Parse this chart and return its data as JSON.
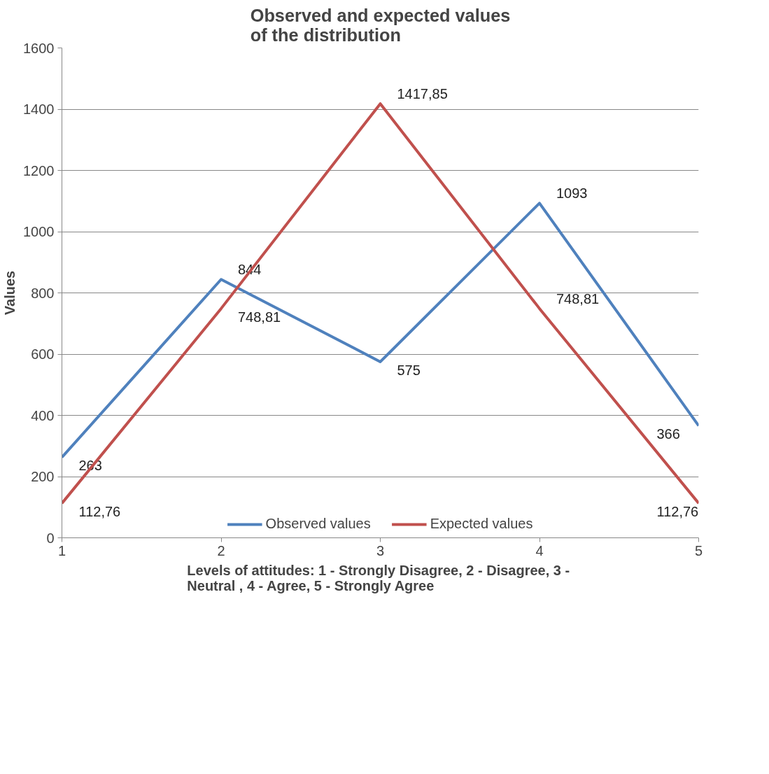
{
  "chart_data": {
    "type": "line",
    "title": "Observed and expected values of the distribution",
    "xlabel": "Levels of attitudes: 1 - Strongly Disagree, 2  - Disagree, 3 - Neutral , 4 - Agree, 5 - Strongly Agree",
    "ylabel": "Values",
    "x": [
      1,
      2,
      3,
      4,
      5
    ],
    "series": [
      {
        "name": "Observed values",
        "color": "#4f81bd",
        "values": [
          263,
          844,
          575,
          1093,
          366
        ],
        "value_labels": [
          "263",
          "844",
          "575",
          "1093",
          "366"
        ]
      },
      {
        "name": "Expected values",
        "color": "#c0504d",
        "values": [
          112.76,
          748.81,
          1417.85,
          748.81,
          112.76
        ],
        "value_labels": [
          "112,76",
          "748,81",
          "1417,85",
          "748,81",
          "112,76"
        ]
      }
    ],
    "xlim": [
      1,
      5
    ],
    "xticks": [
      1,
      2,
      3,
      4,
      5
    ],
    "ylim": [
      0,
      1600
    ],
    "yticks": [
      0,
      200,
      400,
      600,
      800,
      1000,
      1200,
      1400,
      1600
    ],
    "grid": "y",
    "legend": "bottom",
    "marker": "none",
    "line_style": "solid"
  }
}
